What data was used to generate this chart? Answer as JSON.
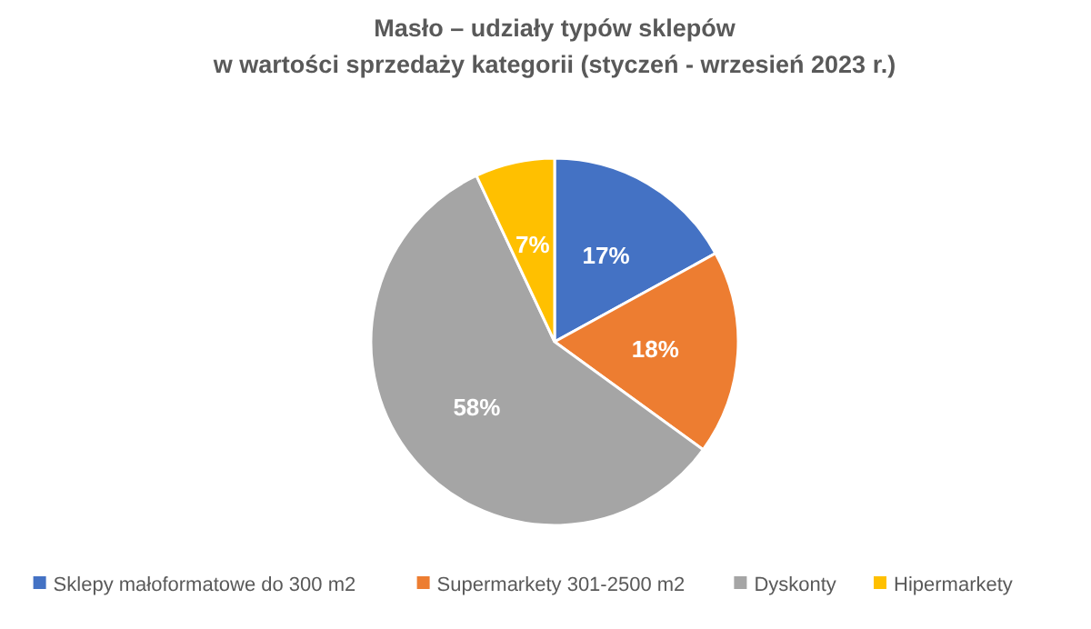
{
  "chart_data": {
    "type": "pie",
    "title": "Masło – udziały typów sklepów\nw wartości sprzedaży kategorii (styczeń - wrzesień 2023 r.)",
    "categories": [
      "Sklepy małoformatowe do 300 m2",
      "Supermarkety 301-2500 m2",
      "Dyskonty",
      "Hipermarkety"
    ],
    "values": [
      17,
      18,
      58,
      7
    ],
    "colors": [
      "#4472c4",
      "#ed7d31",
      "#a5a5a5",
      "#ffc000"
    ],
    "value_labels": [
      "17%",
      "18%",
      "58%",
      "7%"
    ],
    "legend": "bottom"
  }
}
